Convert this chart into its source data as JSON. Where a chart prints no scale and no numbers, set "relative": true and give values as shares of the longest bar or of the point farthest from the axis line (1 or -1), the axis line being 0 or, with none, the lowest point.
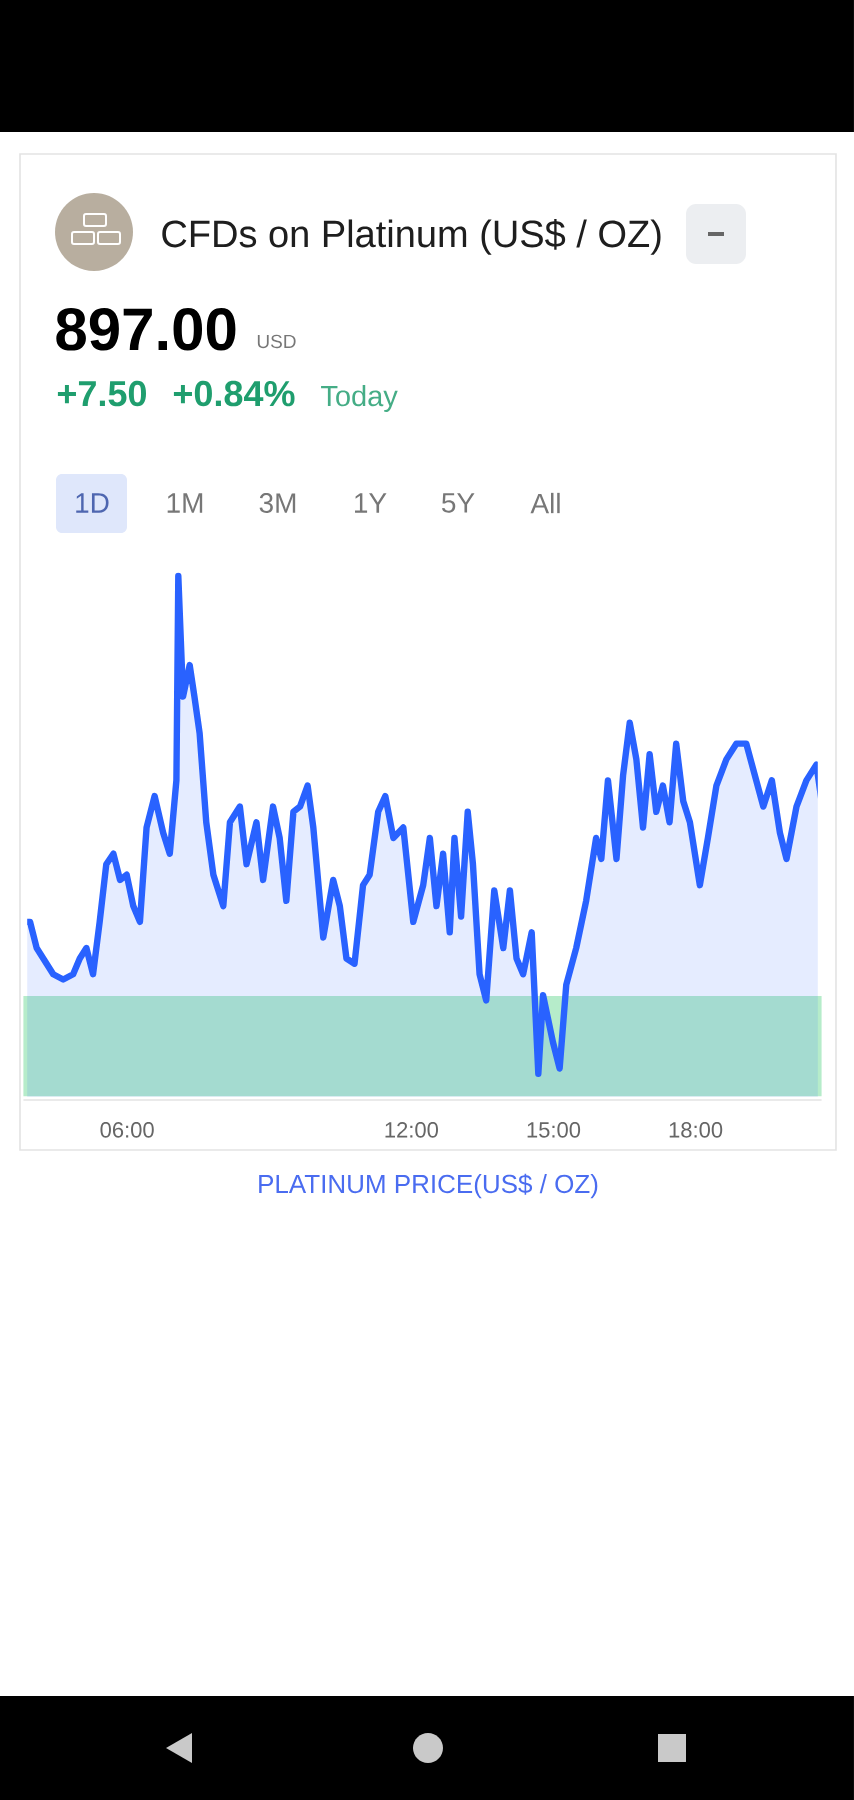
{
  "chart_data": {
    "type": "area",
    "title": "CFDs on Platinum (US$ / OZ)",
    "subtitle": "897.00",
    "annotations": [
      "USD",
      "+7.50",
      "+0.84%",
      "Today",
      "1D",
      "1M",
      "3M",
      "1Y",
      "5Y",
      "All",
      "PLATINUM PRICE(US$ / OZ)"
    ],
    "relative": true,
    "color": "#2962ff",
    "x": [
      3.81,
      3.95,
      4.09,
      4.23,
      4.44,
      4.65,
      4.86,
      5.0,
      5.14,
      5.28,
      5.42,
      5.56,
      5.71,
      5.85,
      5.99,
      6.13,
      6.27,
      6.41,
      6.58,
      6.76,
      6.9,
      7.04,
      7.08,
      7.18,
      7.32,
      7.42,
      7.53,
      7.67,
      7.82,
      8.03,
      8.17,
      8.38,
      8.52,
      8.73,
      8.87,
      9.08,
      9.22,
      9.36,
      9.51,
      9.65,
      9.81,
      9.93,
      10.14,
      10.35,
      10.49,
      10.63,
      10.8,
      10.98,
      11.12,
      11.3,
      11.45,
      11.62,
      11.83,
      12.04,
      12.25,
      12.39,
      12.53,
      12.67,
      12.81,
      12.91,
      13.05,
      13.19,
      13.3,
      13.44,
      13.58,
      13.75,
      13.94,
      14.08,
      14.22,
      14.36,
      14.54,
      14.68,
      14.78,
      14.99,
      15.13,
      15.27,
      15.48,
      15.69,
      15.9,
      16.01,
      16.15,
      16.33,
      16.47,
      16.61,
      16.75,
      16.89,
      17.03,
      17.17,
      17.31,
      17.45,
      17.59,
      17.74,
      17.88,
      18.09,
      18.26,
      18.44,
      18.65,
      18.86,
      19.07,
      19.28,
      19.43,
      19.61,
      19.78,
      19.92,
      20.13,
      20.34,
      20.55,
      20.66
    ],
    "values": [
      0.34,
      0.34,
      0.29,
      0.27,
      0.24,
      0.23,
      0.24,
      0.27,
      0.29,
      0.24,
      0.34,
      0.45,
      0.47,
      0.42,
      0.43,
      0.37,
      0.34,
      0.52,
      0.58,
      0.51,
      0.47,
      0.61,
      1,
      0.77,
      0.83,
      0.77,
      0.7,
      0.53,
      0.43,
      0.37,
      0.53,
      0.56,
      0.45,
      0.53,
      0.42,
      0.56,
      0.5,
      0.38,
      0.55,
      0.56,
      0.6,
      0.52,
      0.31,
      0.42,
      0.37,
      0.27,
      0.26,
      0.41,
      0.43,
      0.55,
      0.58,
      0.5,
      0.52,
      0.34,
      0.41,
      0.5,
      0.37,
      0.47,
      0.32,
      0.5,
      0.35,
      0.55,
      0.45,
      0.24,
      0.19,
      0.4,
      0.29,
      0.4,
      0.27,
      0.24,
      0.32,
      0.05,
      0.2,
      0.11,
      0.06,
      0.22,
      0.29,
      0.38,
      0.5,
      0.46,
      0.61,
      0.46,
      0.62,
      0.72,
      0.65,
      0.52,
      0.66,
      0.55,
      0.6,
      0.53,
      0.68,
      0.57,
      0.53,
      0.41,
      0.5,
      0.6,
      0.65,
      0.68,
      0.68,
      0.61,
      0.56,
      0.61,
      0.51,
      0.46,
      0.56,
      0.61,
      0.64,
      0.57
    ],
    "xlim": [
      3.81,
      20.66
    ],
    "xticks": [
      {
        "value": 6,
        "label": "06:00"
      },
      {
        "value": 12,
        "label": "12:00"
      },
      {
        "value": 15,
        "label": "15:00"
      },
      {
        "value": 18,
        "label": "18:00"
      }
    ]
  }
}
